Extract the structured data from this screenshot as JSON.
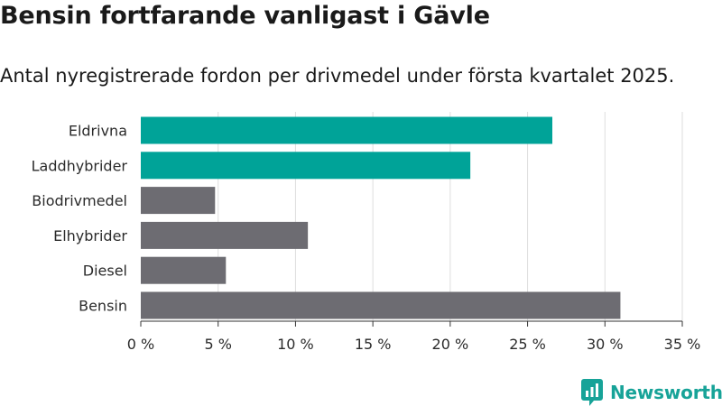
{
  "header": {
    "title": "Bensin fortfarande vanligast i Gävle",
    "subtitle": "Antal nyregistrerade fordon per drivmedel under första kvartalet 2025."
  },
  "chart_data": {
    "type": "bar",
    "orientation": "horizontal",
    "categories": [
      "Eldrivna",
      "Laddhybrider",
      "Biodrivmedel",
      "Elhybrider",
      "Diesel",
      "Bensin"
    ],
    "values": [
      26.6,
      21.3,
      4.8,
      10.8,
      5.5,
      31.0
    ],
    "value_unit": "%",
    "bar_colors": [
      "#00a398",
      "#00a398",
      "#6d6c72",
      "#6d6c72",
      "#6d6c72",
      "#6d6c72"
    ],
    "xlim": [
      0,
      35
    ],
    "xticks": [
      0,
      5,
      10,
      15,
      20,
      25,
      30,
      35
    ],
    "xtick_labels": [
      "0 %",
      "5 %",
      "10 %",
      "15 %",
      "20 %",
      "25 %",
      "30 %",
      "35 %"
    ],
    "grid": true
  },
  "logo": {
    "text": "Newsworthy",
    "icon": "newsworthy-logo-icon",
    "color": "#17a398"
  }
}
